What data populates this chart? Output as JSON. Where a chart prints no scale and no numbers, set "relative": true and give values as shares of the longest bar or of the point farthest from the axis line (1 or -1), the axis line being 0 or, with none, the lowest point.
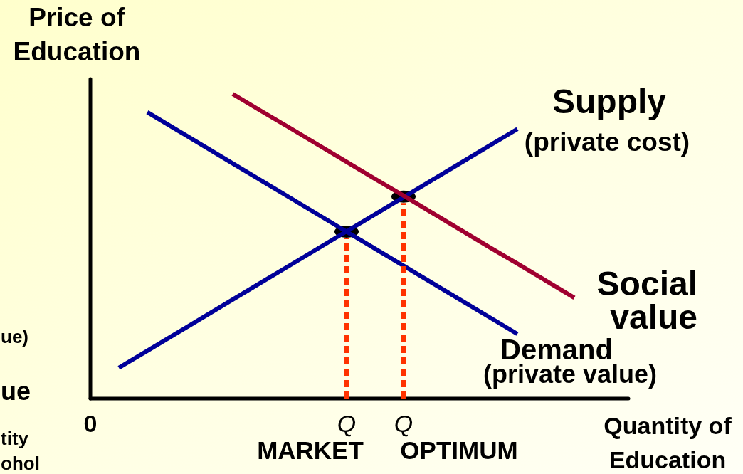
{
  "chart_data": {
    "type": "line",
    "relative": true,
    "ylabel": "Price of Education",
    "xlabel": "Quantity of Education",
    "tick_labels": "x",
    "categories": [
      "0",
      null,
      null,
      null,
      null,
      null,
      null,
      null,
      null,
      "Q",
      null,
      "Q",
      null,
      null,
      null,
      null,
      null,
      null,
      null
    ],
    "series": [
      {
        "name": "Supply",
        "color": "#000099",
        "values": [
          null,
          0.101,
          0.157,
          0.213,
          0.269,
          0.325,
          0.381,
          0.437,
          0.493,
          0.549,
          0.605,
          0.661,
          0.717,
          0.773,
          0.829,
          0.885,
          null,
          null,
          null
        ]
      },
      {
        "name": "Social value",
        "color": "#a00030",
        "values": [
          null,
          null,
          null,
          null,
          null,
          1.0,
          0.944,
          0.889,
          0.833,
          0.777,
          0.721,
          0.666,
          0.61,
          0.554,
          0.498,
          0.443,
          0.387,
          0.331,
          null
        ]
      },
      {
        "name": "Demand",
        "color": "#000099",
        "values": [
          null,
          null,
          0.94,
          0.884,
          0.828,
          0.772,
          0.716,
          0.66,
          0.604,
          0.548,
          0.492,
          0.436,
          0.38,
          0.324,
          0.268,
          0.212,
          null,
          null,
          null
        ]
      },
      {
        "type": "lollipop",
        "color": "#ff3300",
        "line_style": "dotted",
        "marker": "circle",
        "colors": [
          null,
          null,
          null,
          null,
          null,
          null,
          null,
          null,
          null,
          "#000000",
          null,
          "#000000",
          null,
          null,
          null,
          null,
          null,
          null,
          null
        ],
        "values": [
          null,
          null,
          null,
          null,
          null,
          null,
          null,
          null,
          null,
          0.548,
          null,
          0.663,
          null,
          null,
          null,
          null,
          null,
          null,
          null
        ]
      }
    ],
    "annotations": [
      "(private cost)",
      "(private value)",
      "MARKET",
      "OPTIMUM",
      "ue)",
      "ue",
      "tity",
      "ohol"
    ]
  }
}
